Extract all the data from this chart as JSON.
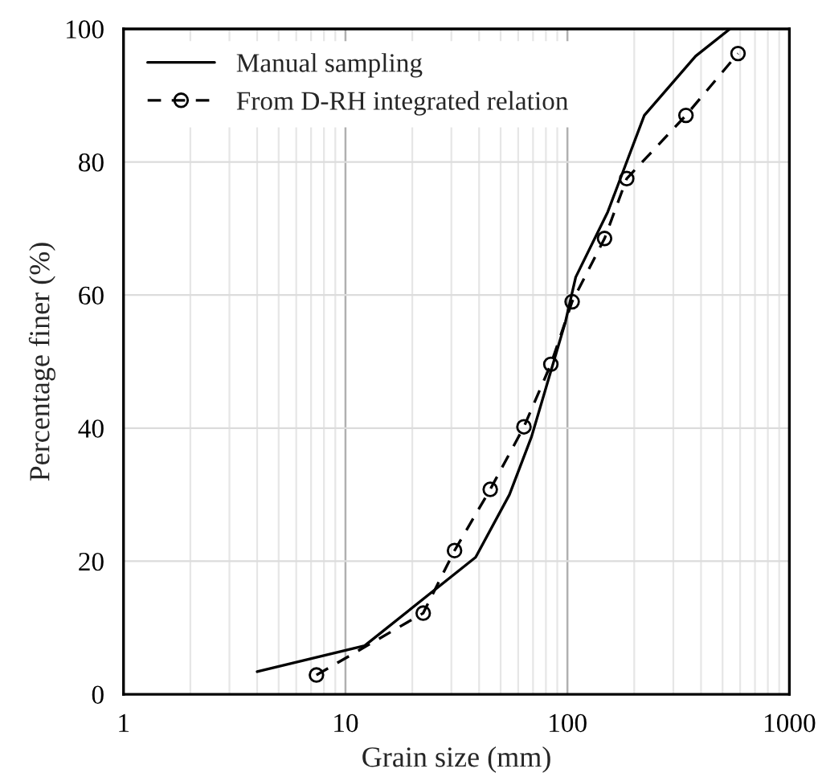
{
  "chart_data": {
    "type": "line",
    "xlabel": "Grain size (mm)",
    "ylabel": "Percentage finer (%)",
    "log": "x",
    "xlim": [
      1,
      1000
    ],
    "xticks": [
      1,
      10,
      100,
      1000
    ],
    "ylim": [
      0,
      100
    ],
    "yticks": [
      0,
      20,
      40,
      60,
      80,
      100
    ],
    "grid": true,
    "legend": "top left",
    "series": [
      {
        "name": "Manual sampling",
        "color": "#000000",
        "line_style": "solid",
        "marker": "none",
        "x": [
          4.0,
          12.2,
          38.6,
          54.8,
          68.9,
          98,
          109,
          152,
          222,
          378,
          540
        ],
        "values": [
          3.4,
          7.3,
          20.6,
          30,
          38.7,
          56,
          62.7,
          72.5,
          87,
          95.9,
          100
        ]
      },
      {
        "name": "From D-RH integrated relation",
        "color": "#000000",
        "line_style": "dashed",
        "marker": "circle",
        "x": [
          7.4,
          22.4,
          31,
          44.9,
          63.7,
          84.2,
          105,
          147,
          185,
          342,
          587
        ],
        "values": [
          2.9,
          12.2,
          21.6,
          30.8,
          40.2,
          49.6,
          59,
          68.5,
          77.5,
          87,
          96.3
        ]
      }
    ]
  }
}
